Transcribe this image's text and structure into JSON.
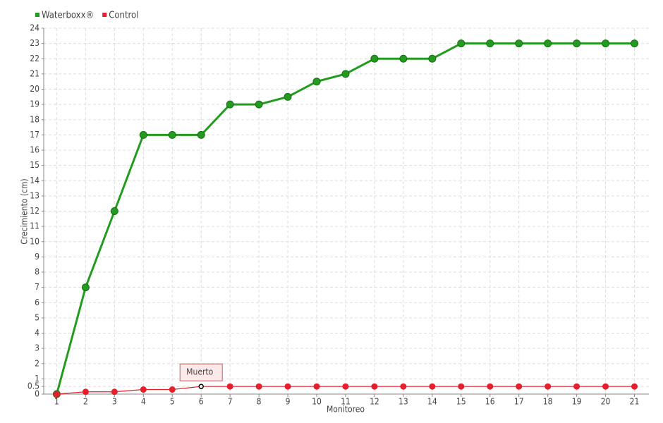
{
  "chart_data": {
    "type": "line",
    "x_label": "Monitoreo",
    "y_label": "Crecimiento (cm)",
    "x": [
      1,
      2,
      3,
      4,
      5,
      6,
      7,
      8,
      9,
      10,
      11,
      12,
      13,
      14,
      15,
      16,
      17,
      18,
      19,
      20,
      21
    ],
    "series": [
      {
        "name": "Waterboxx®",
        "color": "#239b1e",
        "values": [
          0,
          7,
          12,
          17,
          17,
          17,
          19,
          19,
          19.5,
          20.5,
          21,
          22,
          22,
          22,
          23,
          23,
          23,
          23,
          23,
          23,
          23
        ]
      },
      {
        "name": "Control",
        "color": "#e5202c",
        "values": [
          0,
          0.15,
          0.15,
          0.3,
          0.3,
          0.5,
          0.5,
          0.5,
          0.5,
          0.5,
          0.5,
          0.5,
          0.5,
          0.5,
          0.5,
          0.5,
          0.5,
          0.5,
          0.5,
          0.5,
          0.5
        ]
      }
    ],
    "xlim": [
      0.55,
      21.5
    ],
    "xticks": [
      1,
      2,
      3,
      4,
      5,
      6,
      7,
      8,
      9,
      10,
      11,
      12,
      13,
      14,
      15,
      16,
      17,
      18,
      19,
      20,
      21
    ],
    "ylim": [
      0,
      24
    ],
    "yticks": [
      0,
      0.5,
      1,
      2,
      3,
      4,
      5,
      6,
      7,
      8,
      9,
      10,
      11,
      12,
      13,
      14,
      15,
      16,
      17,
      18,
      19,
      20,
      21,
      22,
      23,
      24
    ],
    "grid": true,
    "legend": "top-left",
    "annotations": [
      {
        "text": "Muerto",
        "x": 6
      }
    ]
  }
}
